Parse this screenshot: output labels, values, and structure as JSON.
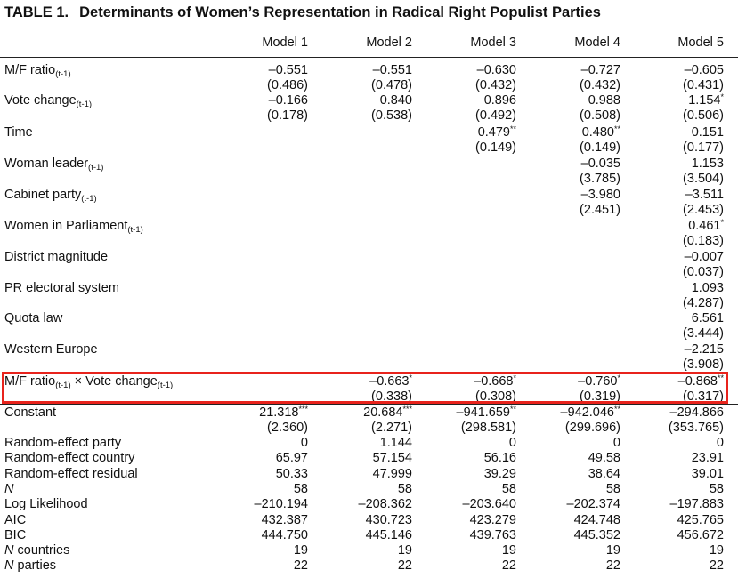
{
  "table": {
    "number": "TABLE 1.",
    "title": "Determinants of Women’s Representation in Radical Right Populist Parties",
    "headers": [
      "Model 1",
      "Model 2",
      "Model 3",
      "Model 4",
      "Model 5"
    ],
    "rows": [
      {
        "label": "M/F ratio",
        "sub": "(t-1)",
        "coef": [
          "–0.551",
          "–0.551",
          "–0.630",
          "–0.727",
          "–0.605"
        ],
        "se": [
          "(0.486)",
          "(0.478)",
          "(0.432)",
          "(0.432)",
          "(0.431)"
        ]
      },
      {
        "label": "Vote change",
        "sub": "(t-1)",
        "coef": [
          "–0.166",
          "0.840",
          "0.896",
          "0.988",
          "1.154*"
        ],
        "se": [
          "(0.178)",
          "(0.538)",
          "(0.492)",
          "(0.508)",
          "(0.506)"
        ]
      },
      {
        "label": "Time",
        "coef": [
          "",
          "",
          "0.479**",
          "0.480**",
          "0.151"
        ],
        "se": [
          "",
          "",
          "(0.149)",
          "(0.149)",
          "(0.177)"
        ]
      },
      {
        "label": "Woman leader",
        "sub": "(t-1)",
        "coef": [
          "",
          "",
          "",
          "–0.035",
          "1.153"
        ],
        "se": [
          "",
          "",
          "",
          "(3.785)",
          "(3.504)"
        ]
      },
      {
        "label": "Cabinet party",
        "sub": "(t-1)",
        "coef": [
          "",
          "",
          "",
          "–3.980",
          "–3.511"
        ],
        "se": [
          "",
          "",
          "",
          "(2.451)",
          "(2.453)"
        ]
      },
      {
        "label": "Women in Parliament",
        "sub": "(t-1)",
        "coef": [
          "",
          "",
          "",
          "",
          "0.461*"
        ],
        "se": [
          "",
          "",
          "",
          "",
          "(0.183)"
        ]
      },
      {
        "label": "District magnitude",
        "coef": [
          "",
          "",
          "",
          "",
          "–0.007"
        ],
        "se": [
          "",
          "",
          "",
          "",
          "(0.037)"
        ]
      },
      {
        "label": "PR electoral system",
        "coef": [
          "",
          "",
          "",
          "",
          "1.093"
        ],
        "se": [
          "",
          "",
          "",
          "",
          "(4.287)"
        ]
      },
      {
        "label": "Quota law",
        "coef": [
          "",
          "",
          "",
          "",
          "6.561"
        ],
        "se": [
          "",
          "",
          "",
          "",
          "(3.444)"
        ]
      },
      {
        "label": "Western Europe",
        "coef": [
          "",
          "",
          "",
          "",
          "–2.215"
        ],
        "se": [
          "",
          "",
          "",
          "",
          "(3.908)"
        ]
      },
      {
        "label": "M/F ratio",
        "sub": "(t-1)",
        "mid": " × Vote change",
        "sub2": "(t-1)",
        "coef": [
          "",
          "–0.663*",
          "–0.668*",
          "–0.760*",
          "–0.868**"
        ],
        "se": [
          "",
          "(0.338)",
          "(0.308)",
          "(0.319)",
          "(0.317)"
        ]
      },
      {
        "label": "Constant",
        "coef": [
          "21.318***",
          "20.684***",
          "–941.659**",
          "–942.046**",
          "–294.866"
        ],
        "se": [
          "(2.360)",
          "(2.271)",
          "(298.581)",
          "(299.696)",
          "(353.765)"
        ]
      }
    ],
    "stats": [
      {
        "label": "Random-effect party",
        "vals": [
          "0",
          "1.144",
          "0",
          "0",
          "0"
        ]
      },
      {
        "label": "Random-effect country",
        "vals": [
          "65.97",
          "57.154",
          "56.16",
          "49.58",
          "23.91"
        ]
      },
      {
        "label": "Random-effect residual",
        "vals": [
          "50.33",
          "47.999",
          "39.29",
          "38.64",
          "39.01"
        ]
      },
      {
        "label": "N",
        "vals": [
          "58",
          "58",
          "58",
          "58",
          "58"
        ]
      },
      {
        "label": "Log Likelihood",
        "vals": [
          "–210.194",
          "–208.362",
          "–203.640",
          "–202.374",
          "–197.883"
        ]
      },
      {
        "label": "AIC",
        "vals": [
          "432.387",
          "430.723",
          "423.279",
          "424.748",
          "425.765"
        ]
      },
      {
        "label": "BIC",
        "vals": [
          "444.750",
          "445.146",
          "439.763",
          "445.352",
          "456.672"
        ]
      },
      {
        "label": "N",
        "rest": " countries",
        "vals": [
          "19",
          "19",
          "19",
          "19",
          "19"
        ]
      },
      {
        "label": "N",
        "rest": " parties",
        "vals": [
          "22",
          "22",
          "22",
          "22",
          "22"
        ]
      }
    ]
  },
  "highlight_color": "#e8231c"
}
